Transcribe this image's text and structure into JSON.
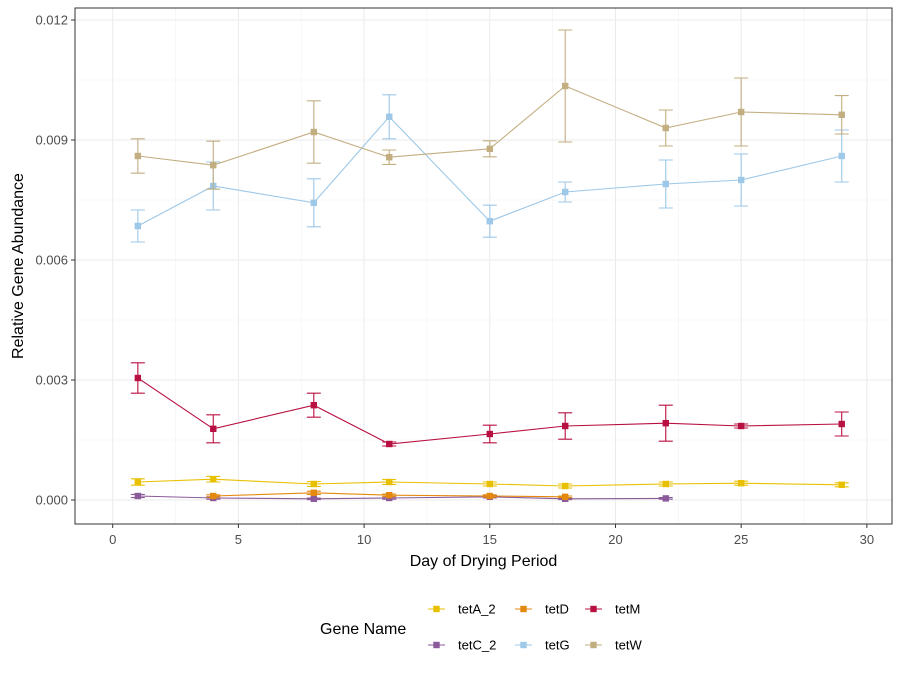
{
  "chart_data": {
    "type": "line",
    "xlabel": "Day of Drying Period",
    "ylabel": "Relative Gene Abundance",
    "xlim": [
      -1.5,
      31
    ],
    "ylim": [
      -0.0006,
      0.0123
    ],
    "x_ticks": [
      0,
      5,
      10,
      15,
      20,
      25,
      30
    ],
    "x_tick_labels": [
      "0",
      "5",
      "10",
      "15",
      "20",
      "25",
      "30"
    ],
    "y_ticks": [
      0,
      0.003,
      0.006,
      0.009,
      0.012
    ],
    "y_tick_labels": [
      "0.000",
      "0.003",
      "0.006",
      "0.009",
      "0.012"
    ],
    "grid": true,
    "legend": {
      "title": "Gene Name",
      "position": "bottom"
    },
    "series": [
      {
        "name": "tetA_2",
        "color": "#E8C000",
        "x": [
          1,
          4,
          8,
          11,
          15,
          18,
          22,
          25,
          29
        ],
        "y": [
          0.00045,
          0.00052,
          0.0004,
          0.00045,
          0.0004,
          0.00035,
          0.0004,
          0.00042,
          0.00038
        ],
        "err": [
          8e-05,
          7e-05,
          6e-05,
          6e-05,
          5e-05,
          5e-05,
          5e-05,
          5e-05,
          5e-05
        ]
      },
      {
        "name": "tetC_2",
        "color": "#8B5A9A",
        "x": [
          1,
          4,
          8,
          11,
          15,
          18,
          22
        ],
        "y": [
          0.0001,
          5e-05,
          3e-05,
          5e-05,
          8e-05,
          3e-05,
          4e-05
        ],
        "err": [
          4e-05,
          3e-05,
          2e-05,
          3e-05,
          3e-05,
          2e-05,
          2e-05
        ]
      },
      {
        "name": "tetD",
        "color": "#E3890F",
        "x": [
          4,
          8,
          11,
          15,
          18
        ],
        "y": [
          0.0001,
          0.00018,
          0.00012,
          0.0001,
          8e-05
        ],
        "err": [
          3e-05,
          4e-05,
          3e-05,
          3e-05,
          2e-05
        ]
      },
      {
        "name": "tetG",
        "color": "#9DC8E8",
        "x": [
          1,
          4,
          8,
          11,
          15,
          18,
          22,
          25,
          29
        ],
        "y": [
          0.00685,
          0.00785,
          0.00743,
          0.00958,
          0.00697,
          0.0077,
          0.0079,
          0.008,
          0.0086
        ],
        "err": [
          0.0004,
          0.0006,
          0.0006,
          0.00055,
          0.0004,
          0.00025,
          0.0006,
          0.00065,
          0.00065
        ]
      },
      {
        "name": "tetM",
        "color": "#B81040",
        "x": [
          1,
          4,
          8,
          11,
          15,
          18,
          22,
          25,
          29
        ],
        "y": [
          0.00305,
          0.00178,
          0.00237,
          0.0014,
          0.00165,
          0.00185,
          0.00192,
          0.00185,
          0.0019
        ],
        "err": [
          0.00038,
          0.00035,
          0.0003,
          5e-05,
          0.00022,
          0.00033,
          0.00045,
          5e-05,
          0.0003
        ]
      },
      {
        "name": "tetW",
        "color": "#C2AE80",
        "x": [
          1,
          4,
          8,
          11,
          15,
          18,
          22,
          25,
          29
        ],
        "y": [
          0.0086,
          0.00837,
          0.0092,
          0.00857,
          0.00878,
          0.01035,
          0.0093,
          0.0097,
          0.00963
        ],
        "err": [
          0.00043,
          0.0006,
          0.00078,
          0.00018,
          0.0002,
          0.0014,
          0.00045,
          0.00085,
          0.00048
        ]
      }
    ]
  }
}
